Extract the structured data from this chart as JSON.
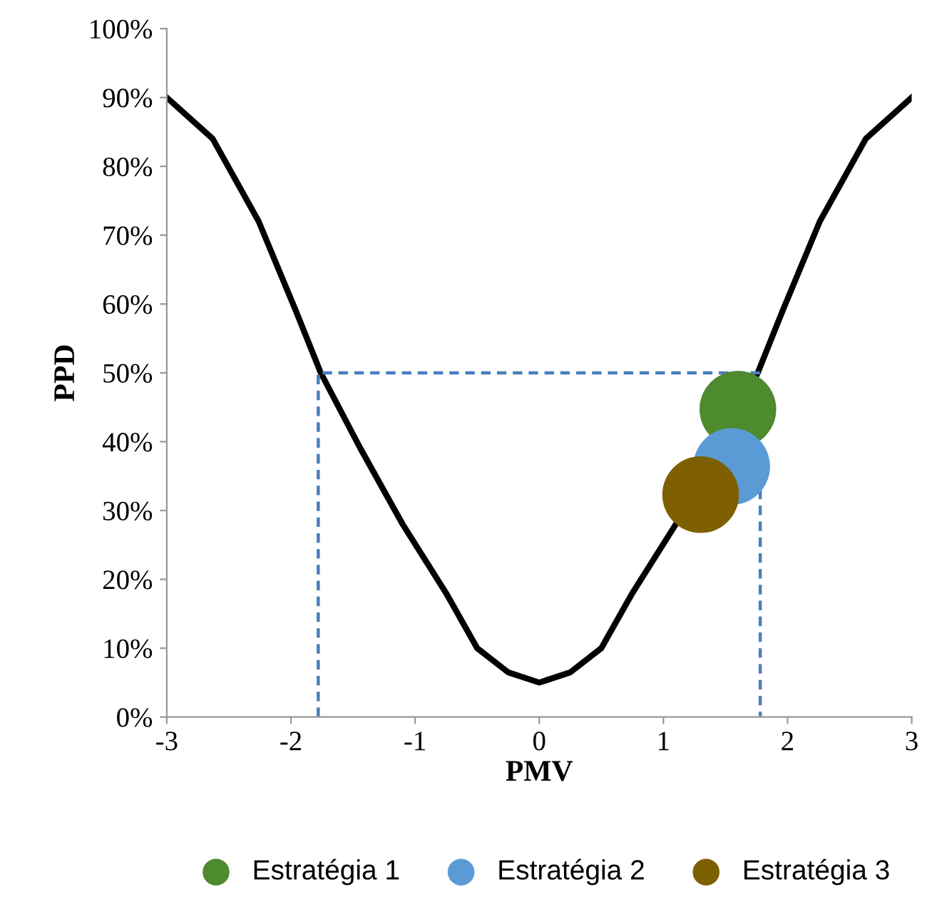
{
  "chart_data": {
    "type": "scatter",
    "xlabel": "PMV",
    "ylabel": "PPD",
    "xlim": [
      -3,
      3
    ],
    "xticks": [
      -3,
      -2,
      -1,
      0,
      1,
      2,
      3
    ],
    "ylim": [
      0,
      100
    ],
    "yticks": [
      {
        "value": 0,
        "label": "0%"
      },
      {
        "value": 10,
        "label": "10%"
      },
      {
        "value": 20,
        "label": "20%"
      },
      {
        "value": 30,
        "label": "30%"
      },
      {
        "value": 40,
        "label": "40%"
      },
      {
        "value": 50,
        "label": "50%"
      },
      {
        "value": 60,
        "label": "60%"
      },
      {
        "value": 70,
        "label": "70%"
      },
      {
        "value": 80,
        "label": "80%"
      },
      {
        "value": 90,
        "label": "90%"
      },
      {
        "value": 100,
        "label": "100%"
      }
    ],
    "grid": false,
    "legend": "bottom",
    "series": [
      {
        "type": "line",
        "color": "#000000",
        "line_style": "solid",
        "marker": "none",
        "x": [
          -3,
          -2.63,
          -2.26,
          -1.96,
          -1.76,
          -1.44,
          -1.1,
          -0.75,
          -0.5,
          -0.25,
          0,
          0.25,
          0.5,
          0.75,
          1.1,
          1.76,
          1.96,
          2.26,
          2.63,
          3
        ],
        "values": [
          90,
          84,
          72,
          59,
          50,
          39,
          28,
          18,
          10,
          6.5,
          5,
          6.5,
          10,
          18,
          28,
          50,
          59,
          72,
          84,
          90
        ]
      },
      {
        "type": "line",
        "color": "#4a7ebb",
        "line_style": "dashed",
        "marker": "none",
        "x": [
          -1.78,
          -1.78,
          1.78,
          1.78
        ],
        "values": [
          0,
          50,
          50,
          0
        ]
      },
      {
        "name": "Estratégia 1",
        "color": "#4e8a2e",
        "marker": "circle",
        "x": [
          1.6
        ],
        "values": [
          44.7
        ]
      },
      {
        "name": "Estratégia 2",
        "color": "#5b9bd5",
        "marker": "circle",
        "x": [
          1.55
        ],
        "values": [
          36.4
        ]
      },
      {
        "name": "Estratégia 3",
        "color": "#7f6000",
        "marker": "circle",
        "x": [
          1.3
        ],
        "values": [
          32.3
        ]
      }
    ]
  }
}
